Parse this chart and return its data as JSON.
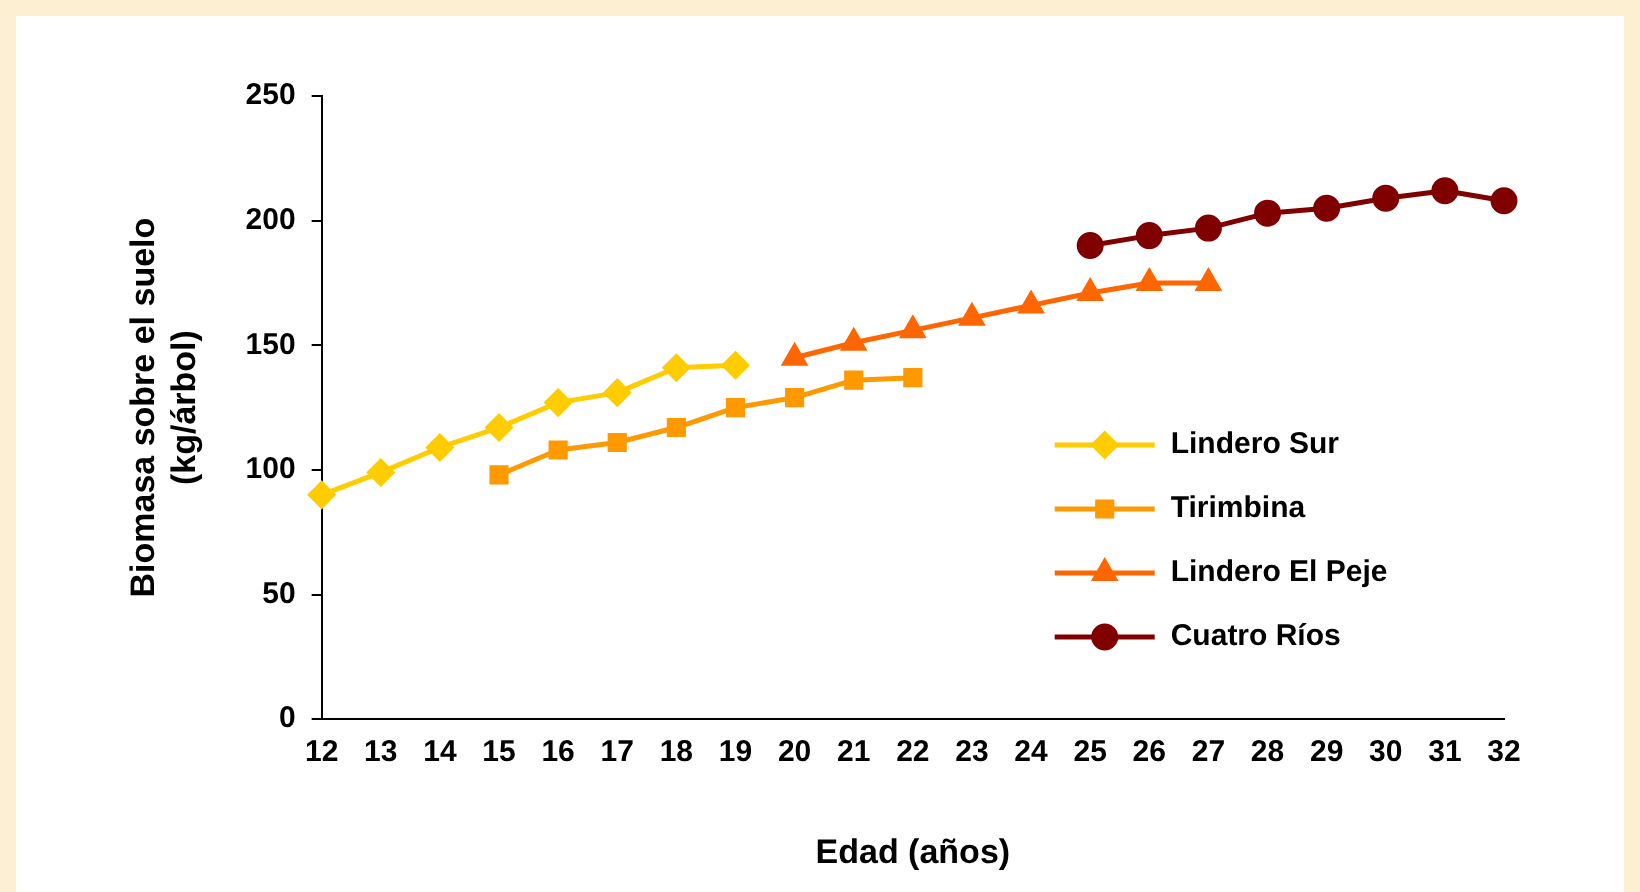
{
  "chart_data": {
    "type": "line",
    "xlabel": "Edad (años)",
    "ylabel": "Biomasa sobre el suelo (kg/árbol)",
    "categories": [
      "12",
      "13",
      "14",
      "15",
      "16",
      "17",
      "18",
      "19",
      "20",
      "21",
      "22",
      "23",
      "24",
      "25",
      "26",
      "27",
      "28",
      "29",
      "30",
      "31",
      "32"
    ],
    "ylim": [
      0,
      250
    ],
    "yticks": [
      0,
      50,
      100,
      150,
      200,
      250
    ],
    "grid": false,
    "legend": "right",
    "series": [
      {
        "name": "Lindero Sur",
        "color": "#ffcc00",
        "marker": "diamond",
        "values": [
          90,
          99,
          109,
          117,
          127,
          131,
          141,
          142,
          null,
          null,
          null,
          null,
          null,
          null,
          null,
          null,
          null,
          null,
          null,
          null,
          null
        ]
      },
      {
        "name": "Tirimbina",
        "color": "#ff9900",
        "marker": "square",
        "values": [
          null,
          null,
          null,
          98,
          108,
          111,
          117,
          125,
          129,
          136,
          137,
          null,
          null,
          null,
          null,
          null,
          null,
          null,
          null,
          null,
          null
        ]
      },
      {
        "name": "Lindero El Peje",
        "color": "#ff6600",
        "marker": "triangle",
        "values": [
          null,
          null,
          null,
          null,
          null,
          null,
          null,
          null,
          145,
          151,
          156,
          161,
          166,
          171,
          175,
          175,
          null,
          null,
          null,
          null,
          null
        ]
      },
      {
        "name": "Cuatro Ríos",
        "color": "#800000",
        "marker": "circle",
        "values": [
          null,
          null,
          null,
          null,
          null,
          null,
          null,
          null,
          null,
          null,
          null,
          null,
          null,
          190,
          194,
          197,
          203,
          205,
          209,
          212,
          208
        ]
      }
    ]
  }
}
